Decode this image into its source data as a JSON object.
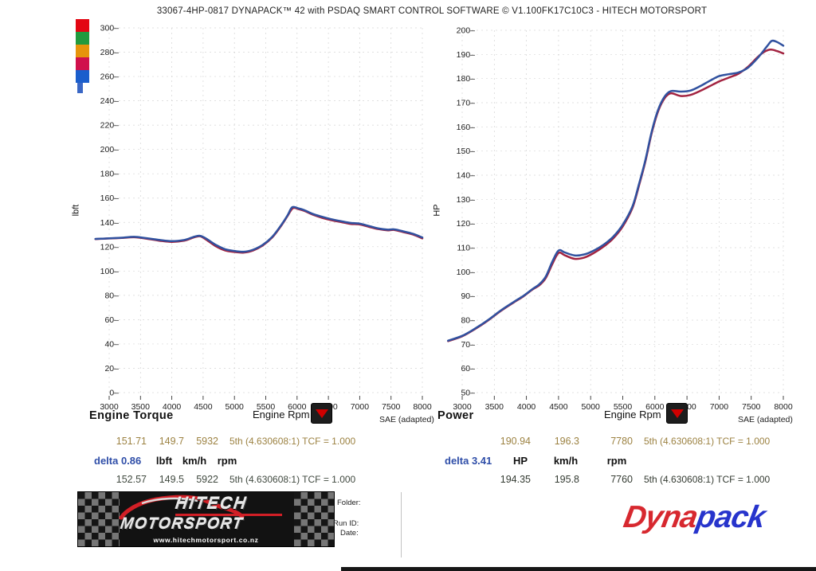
{
  "title": "33067-4HP-0817 DYNAPACK™ 42 with PSDAQ SMART CONTROL SOFTWARE © V1.100FK17C10C3 - HITECH MOTORSPORT",
  "legend": {
    "swatches": [
      {
        "name": "red",
        "color": "#e30613"
      },
      {
        "name": "green",
        "color": "#229a3e"
      },
      {
        "name": "orange",
        "color": "#e6940c"
      },
      {
        "name": "crimson",
        "color": "#d0104c"
      },
      {
        "name": "blue",
        "color": "#1b5ecc"
      }
    ],
    "stub_color": "#3a67c5"
  },
  "chart_data": [
    {
      "id": "torque",
      "type": "line",
      "title": "Engine Torque",
      "xlabel": "Engine Rpm",
      "ylabel": "lbft",
      "sae_label": "SAE (adapted)",
      "xlim": [
        2780,
        8000
      ],
      "ylim": [
        0,
        300
      ],
      "x_ticks": [
        3000,
        3500,
        4000,
        4500,
        5000,
        5500,
        6000,
        6500,
        7000,
        7500,
        8000
      ],
      "y_ticks": [
        0,
        20,
        40,
        60,
        80,
        100,
        120,
        140,
        160,
        180,
        200,
        220,
        240,
        260,
        280,
        300
      ],
      "grid": true,
      "legend_position": "none",
      "series": [
        {
          "name": "run-a-red",
          "color": "#a22340",
          "points": [
            [
              2780,
              126.3
            ],
            [
              3000,
              126.8
            ],
            [
              3200,
              127.2
            ],
            [
              3400,
              127.8
            ],
            [
              3600,
              126.6
            ],
            [
              3800,
              125.0
            ],
            [
              4000,
              124.0
            ],
            [
              4200,
              125.0
            ],
            [
              4350,
              127.6
            ],
            [
              4450,
              128.6
            ],
            [
              4550,
              125.8
            ],
            [
              4700,
              120.5
            ],
            [
              4850,
              117.0
            ],
            [
              5000,
              115.7
            ],
            [
              5150,
              115.2
            ],
            [
              5300,
              117.0
            ],
            [
              5450,
              121.0
            ],
            [
              5600,
              127.5
            ],
            [
              5750,
              137.5
            ],
            [
              5850,
              145.5
            ],
            [
              5932,
              151.7
            ],
            [
              6020,
              151.0
            ],
            [
              6120,
              149.4
            ],
            [
              6250,
              146.4
            ],
            [
              6400,
              143.8
            ],
            [
              6550,
              141.8
            ],
            [
              6700,
              140.3
            ],
            [
              6850,
              138.8
            ],
            [
              7000,
              138.3
            ],
            [
              7150,
              136.3
            ],
            [
              7300,
              134.5
            ],
            [
              7450,
              133.5
            ],
            [
              7550,
              133.8
            ],
            [
              7700,
              132.0
            ],
            [
              7850,
              130.0
            ],
            [
              8000,
              126.9
            ]
          ]
        },
        {
          "name": "run-b-blue",
          "color": "#30519f",
          "points": [
            [
              2780,
              126.4
            ],
            [
              3000,
              126.9
            ],
            [
              3200,
              127.4
            ],
            [
              3400,
              128.1
            ],
            [
              3600,
              127.0
            ],
            [
              3800,
              125.6
            ],
            [
              4000,
              124.6
            ],
            [
              4200,
              125.6
            ],
            [
              4350,
              128.1
            ],
            [
              4450,
              129.0
            ],
            [
              4550,
              126.6
            ],
            [
              4700,
              121.6
            ],
            [
              4850,
              118.0
            ],
            [
              5000,
              116.5
            ],
            [
              5150,
              115.9
            ],
            [
              5300,
              117.6
            ],
            [
              5450,
              121.5
            ],
            [
              5600,
              128.0
            ],
            [
              5750,
              138.0
            ],
            [
              5850,
              146.0
            ],
            [
              5922,
              152.5
            ],
            [
              6020,
              151.6
            ],
            [
              6120,
              150.0
            ],
            [
              6250,
              147.0
            ],
            [
              6400,
              144.6
            ],
            [
              6550,
              142.6
            ],
            [
              6700,
              141.0
            ],
            [
              6850,
              139.6
            ],
            [
              7000,
              139.0
            ],
            [
              7150,
              137.0
            ],
            [
              7300,
              135.0
            ],
            [
              7450,
              134.0
            ],
            [
              7550,
              134.3
            ],
            [
              7700,
              132.6
            ],
            [
              7850,
              130.6
            ],
            [
              8000,
              127.6
            ]
          ]
        }
      ]
    },
    {
      "id": "power",
      "type": "line",
      "title": "Power",
      "xlabel": "Engine Rpm",
      "ylabel": "HP",
      "sae_label": "SAE (adapted)",
      "xlim": [
        2780,
        8000
      ],
      "ylim": [
        50,
        200
      ],
      "x_ticks": [
        3000,
        3500,
        4000,
        4500,
        5000,
        5500,
        6000,
        6500,
        7000,
        7500,
        8000
      ],
      "y_ticks": [
        50,
        60,
        70,
        80,
        90,
        100,
        110,
        120,
        130,
        140,
        150,
        160,
        170,
        180,
        190,
        200
      ],
      "grid": true,
      "legend_position": "none",
      "series": [
        {
          "name": "run-a-red",
          "color": "#a22340",
          "points": [
            [
              2780,
              71.3
            ],
            [
              3000,
              73.3
            ],
            [
              3200,
              76.3
            ],
            [
              3400,
              79.8
            ],
            [
              3600,
              83.8
            ],
            [
              3800,
              87.3
            ],
            [
              3950,
              89.8
            ],
            [
              4100,
              92.8
            ],
            [
              4200,
              94.4
            ],
            [
              4300,
              97.4
            ],
            [
              4400,
              103.0
            ],
            [
              4500,
              107.8
            ],
            [
              4600,
              106.8
            ],
            [
              4750,
              105.4
            ],
            [
              4900,
              105.9
            ],
            [
              5050,
              107.8
            ],
            [
              5200,
              110.4
            ],
            [
              5350,
              113.8
            ],
            [
              5500,
              118.8
            ],
            [
              5650,
              126.4
            ],
            [
              5750,
              135.4
            ],
            [
              5850,
              145.4
            ],
            [
              5950,
              157.4
            ],
            [
              6050,
              166.4
            ],
            [
              6150,
              171.8
            ],
            [
              6250,
              173.9
            ],
            [
              6400,
              172.8
            ],
            [
              6550,
              173.2
            ],
            [
              6700,
              174.8
            ],
            [
              6850,
              176.8
            ],
            [
              7000,
              178.8
            ],
            [
              7150,
              180.4
            ],
            [
              7300,
              182.0
            ],
            [
              7450,
              184.9
            ],
            [
              7600,
              188.9
            ],
            [
              7700,
              191.0
            ],
            [
              7800,
              192.0
            ],
            [
              7900,
              191.4
            ],
            [
              8000,
              190.4
            ]
          ]
        },
        {
          "name": "run-b-blue",
          "color": "#30519f",
          "points": [
            [
              2780,
              71.5
            ],
            [
              3000,
              73.5
            ],
            [
              3200,
              76.5
            ],
            [
              3400,
              80.0
            ],
            [
              3600,
              84.0
            ],
            [
              3800,
              87.5
            ],
            [
              3950,
              90.0
            ],
            [
              4100,
              93.0
            ],
            [
              4200,
              94.8
            ],
            [
              4300,
              98.0
            ],
            [
              4400,
              104.0
            ],
            [
              4500,
              108.8
            ],
            [
              4600,
              108.0
            ],
            [
              4750,
              106.8
            ],
            [
              4900,
              107.2
            ],
            [
              5050,
              108.8
            ],
            [
              5200,
              111.2
            ],
            [
              5350,
              114.5
            ],
            [
              5500,
              119.5
            ],
            [
              5650,
              127.0
            ],
            [
              5750,
              136.0
            ],
            [
              5850,
              146.0
            ],
            [
              5950,
              158.0
            ],
            [
              6050,
              167.0
            ],
            [
              6150,
              172.5
            ],
            [
              6250,
              174.8
            ],
            [
              6400,
              174.6
            ],
            [
              6550,
              175.0
            ],
            [
              6700,
              176.8
            ],
            [
              6850,
              179.0
            ],
            [
              7000,
              181.0
            ],
            [
              7150,
              181.8
            ],
            [
              7300,
              182.5
            ],
            [
              7450,
              184.5
            ],
            [
              7600,
              188.5
            ],
            [
              7750,
              193.5
            ],
            [
              7820,
              195.6
            ],
            [
              7900,
              195.2
            ],
            [
              8000,
              193.6
            ]
          ]
        }
      ]
    }
  ],
  "tables": {
    "torque": {
      "run_a": {
        "color": "#9c8242",
        "values": [
          "151.71",
          "149.7",
          "5932"
        ],
        "gear": "5th (4.630608:1) TCF = 1.000"
      },
      "delta": "delta 0.86",
      "delta_color": "#2f4ea8",
      "units": [
        "lbft",
        "km/h",
        "rpm"
      ],
      "run_b": {
        "color": "#414a40",
        "values": [
          "152.57",
          "149.5",
          "5922"
        ],
        "gear": "5th (4.630608:1) TCF = 1.000"
      }
    },
    "power": {
      "run_a": {
        "color": "#9c8242",
        "values": [
          "190.94",
          "196.3",
          "7780"
        ],
        "gear": "5th (4.630608:1) TCF = 1.000"
      },
      "delta": "delta 3.41",
      "delta_color": "#2f4ea8",
      "units": [
        "HP",
        "km/h",
        "rpm"
      ],
      "run_b": {
        "color": "#343b32",
        "values": [
          "194.35",
          "195.8",
          "7760"
        ],
        "gear": "5th (4.630608:1) TCF = 1.000"
      }
    }
  },
  "footer": {
    "hitech": {
      "line1": "HITECH",
      "line2": "MOTORSPORT",
      "url": "www.hitechmotorsport.co.nz"
    },
    "fields": {
      "folder": "Folder:",
      "run_id": "Run ID:",
      "date": "Date:"
    },
    "dynapack": {
      "part1": "Dyna",
      "part2": "pack",
      "color1": "#d7282f",
      "color2": "#2734cc"
    }
  }
}
